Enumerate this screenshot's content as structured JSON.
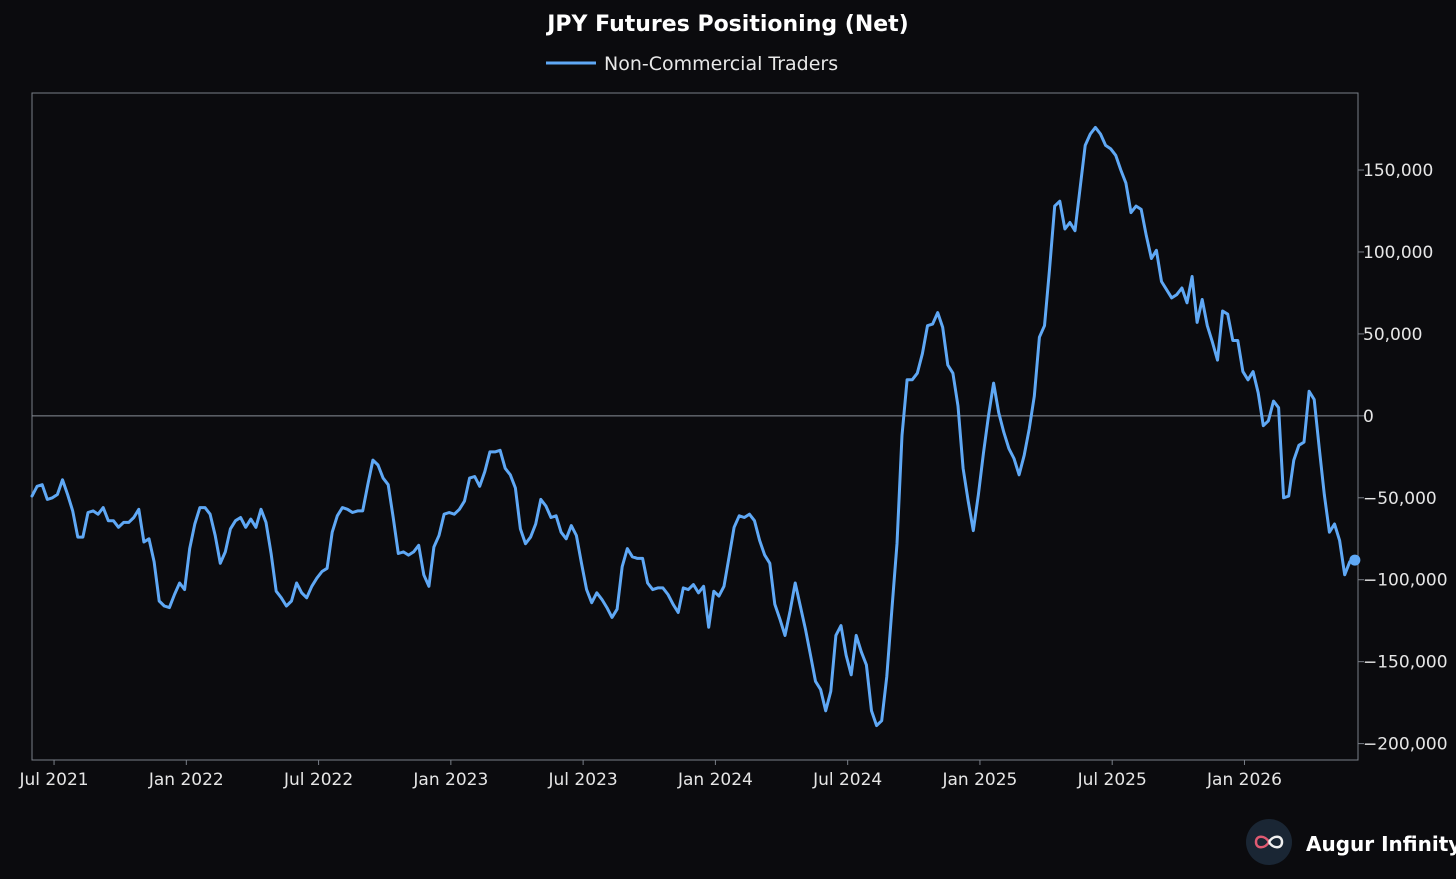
{
  "chart_data": {
    "type": "line",
    "title": "JPY Futures Positioning (Net)",
    "xlabel": "",
    "ylabel": "",
    "ylim": [
      -210000,
      197000
    ],
    "yticks": [
      150000,
      100000,
      50000,
      0,
      -50000,
      -100000,
      -150000,
      -200000
    ],
    "ytick_labels": [
      "150,000",
      "100,000",
      "50,000",
      "0",
      "−50,000",
      "−100,000",
      "−150,000",
      "−200,000"
    ],
    "xticks": [
      6.5,
      12.5,
      18.5,
      24.5,
      30.5,
      36.5,
      42.5,
      48.5,
      54.5,
      60.5
    ],
    "xtick_labels": [
      "Jul 2021",
      "Jan 2022",
      "Jul 2022",
      "Jan 2023",
      "Jul 2023",
      "Jan 2024",
      "Jul 2024",
      "Jan 2025",
      "Jul 2025",
      "Jan 2026"
    ],
    "xlim": [
      5.5,
      65.65
    ],
    "zero_line": true,
    "legend": {
      "position": "top-center"
    },
    "series": [
      {
        "name": "Non-Commercial Traders",
        "color": "#5fa8f5",
        "x_start": 5.5,
        "x_step": 0.2308,
        "values": [
          -49000,
          -43000,
          -42000,
          -51000,
          -50000,
          -48000,
          -39000,
          -48000,
          -58000,
          -74000,
          -74000,
          -59000,
          -58000,
          -60000,
          -56000,
          -64000,
          -64000,
          -68000,
          -65000,
          -65000,
          -62000,
          -57000,
          -77000,
          -75000,
          -89000,
          -113000,
          -116000,
          -117000,
          -109000,
          -102000,
          -106000,
          -81000,
          -66000,
          -56000,
          -56000,
          -60000,
          -73000,
          -90000,
          -83000,
          -69000,
          -64000,
          -62000,
          -68000,
          -63000,
          -68000,
          -57000,
          -65000,
          -84000,
          -107000,
          -111000,
          -116000,
          -113000,
          -102000,
          -108000,
          -111000,
          -104000,
          -99000,
          -95000,
          -93000,
          -71000,
          -61000,
          -56000,
          -57000,
          -59000,
          -58000,
          -58000,
          -42000,
          -27000,
          -30000,
          -38000,
          -42000,
          -62000,
          -84000,
          -83000,
          -85000,
          -83000,
          -79000,
          -97000,
          -104000,
          -80000,
          -73000,
          -60000,
          -59000,
          -60000,
          -57000,
          -52000,
          -38000,
          -37000,
          -43000,
          -34000,
          -22000,
          -22000,
          -21000,
          -32000,
          -36000,
          -44000,
          -69000,
          -78000,
          -74000,
          -66000,
          -51000,
          -55000,
          -62000,
          -61000,
          -71000,
          -75000,
          -67000,
          -73000,
          -90000,
          -106000,
          -114000,
          -108000,
          -112000,
          -117000,
          -123000,
          -118000,
          -92000,
          -81000,
          -86000,
          -87000,
          -87000,
          -102000,
          -106000,
          -105000,
          -105000,
          -109000,
          -115000,
          -120000,
          -105000,
          -106000,
          -103000,
          -108000,
          -104000,
          -129000,
          -107000,
          -110000,
          -104000,
          -86000,
          -68000,
          -61000,
          -62000,
          -60000,
          -64000,
          -76000,
          -85000,
          -90000,
          -115000,
          -124000,
          -134000,
          -119000,
          -102000,
          -116000,
          -130000,
          -146000,
          -162000,
          -167000,
          -180000,
          -168000,
          -134000,
          -128000,
          -146000,
          -158000,
          -134000,
          -144000,
          -152000,
          -180000,
          -189000,
          -186000,
          -159000,
          -118000,
          -78000,
          -12000,
          22000,
          22000,
          26000,
          38000,
          55000,
          56000,
          63000,
          54000,
          31000,
          26000,
          6000,
          -32000,
          -52000,
          -70000,
          -48000,
          -23000,
          0,
          20000,
          2000,
          -10000,
          -20000,
          -26000,
          -36000,
          -24000,
          -8000,
          12000,
          48000,
          55000,
          90000,
          128000,
          131000,
          114000,
          118000,
          113000,
          139000,
          165000,
          172000,
          176000,
          172000,
          165000,
          163000,
          159000,
          150000,
          142000,
          124000,
          128000,
          126000,
          110000,
          96000,
          101000,
          82000,
          77000,
          72000,
          74000,
          78000,
          69000,
          85000,
          57000,
          71000,
          55000,
          45000,
          34000,
          64000,
          62000,
          46000,
          46000,
          27000,
          22000,
          27000,
          14000,
          -6000,
          -3000,
          9000,
          5000,
          -50000,
          -49000,
          -27000,
          -18000,
          -16000,
          15000,
          10000,
          -20000,
          -48000,
          -71000,
          -66000,
          -76000,
          -97000,
          -89000,
          -88000
        ]
      }
    ]
  },
  "brand": {
    "name": "Augur Infinity",
    "icon": "infinity-icon"
  }
}
